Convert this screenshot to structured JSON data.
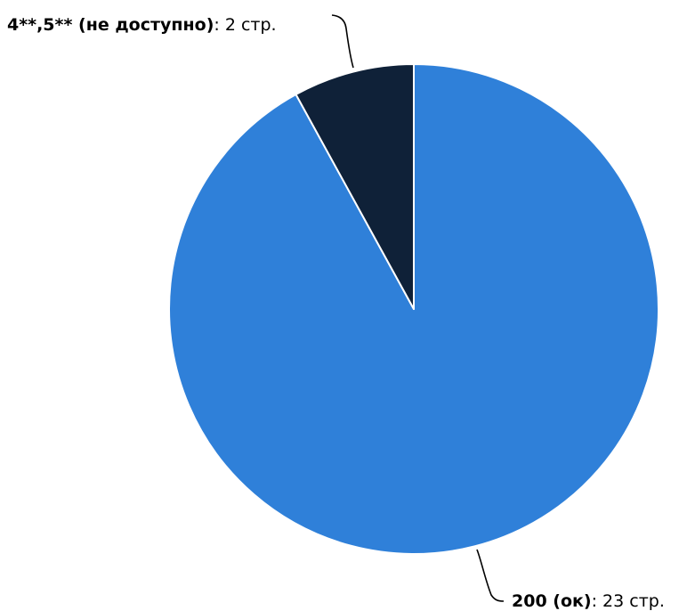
{
  "chart_data": {
    "type": "pie",
    "unit": "стр.",
    "slices": [
      {
        "label": "200 (ок)",
        "value": 23,
        "value_text": "23 стр.",
        "color": "#2f80d9"
      },
      {
        "label": "4**,5** (не доступно)",
        "value": 2,
        "value_text": "2 стр.",
        "color": "#0f2138"
      }
    ]
  }
}
